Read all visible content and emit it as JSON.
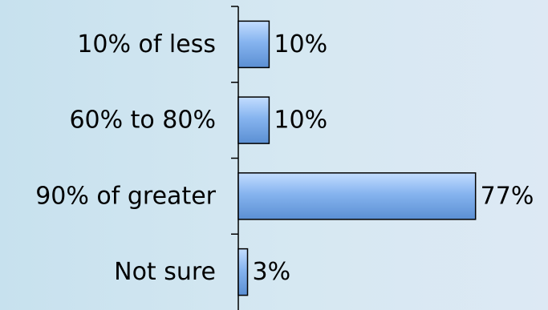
{
  "chart_data": {
    "type": "bar",
    "orientation": "horizontal",
    "categories": [
      "10% of less",
      "60% to 80%",
      "90% of greater",
      "Not sure"
    ],
    "values": [
      10,
      10,
      77,
      3
    ],
    "value_labels": [
      "10%",
      "10%",
      "77%",
      "3%"
    ],
    "unit": "%",
    "title": "",
    "xlabel": "",
    "ylabel": "",
    "xlim": [
      0,
      100
    ],
    "grid": false,
    "legend": "none"
  },
  "colors": {
    "bar_fill_light": "#c3ddff",
    "bar_fill_mid": "#86b4ef",
    "bar_fill_dark": "#5b8fd3",
    "bar_stroke": "#000000",
    "axis": "#000000",
    "background_left": "#c7e1ee",
    "background_right": "#dde9f4"
  }
}
